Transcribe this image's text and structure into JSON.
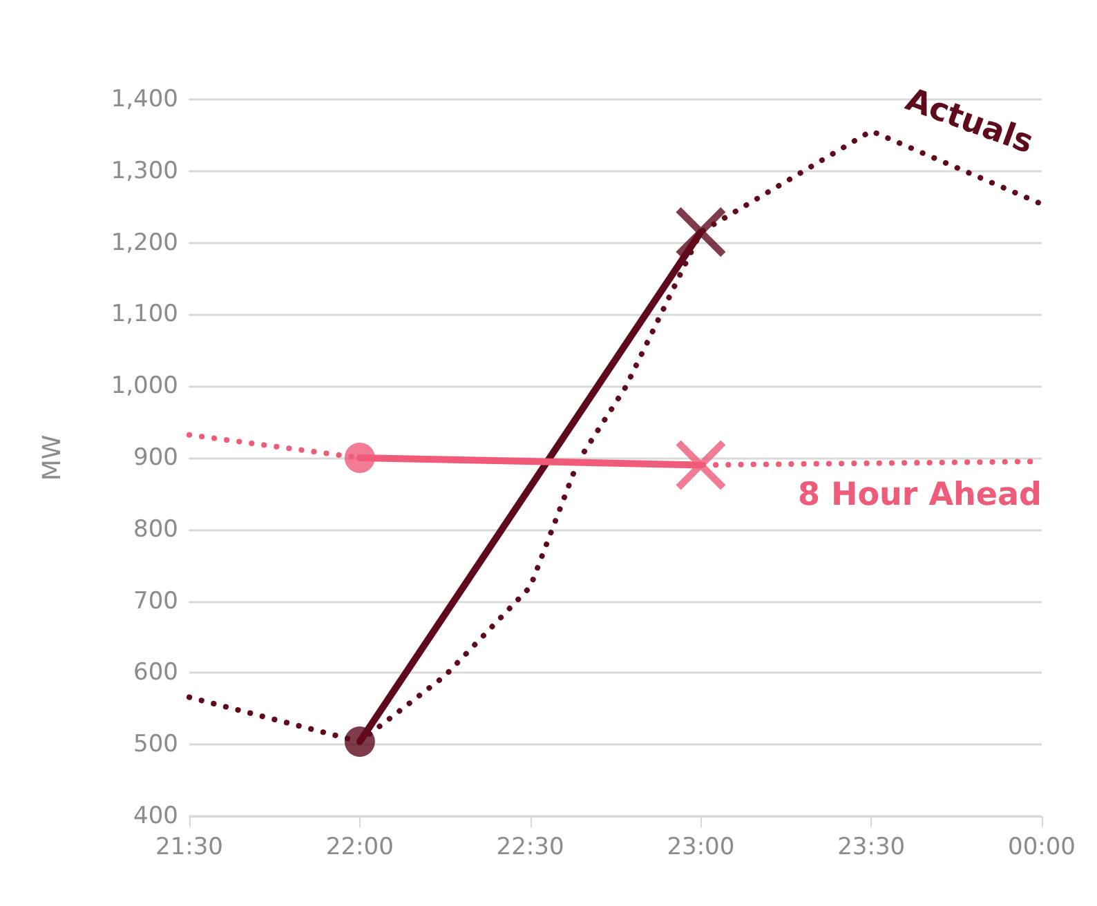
{
  "chart_data": {
    "type": "line",
    "ylabel": "MW",
    "grid": "y",
    "legend": false,
    "xlim": [
      21.5,
      24
    ],
    "xticks": [
      {
        "value": 21.5,
        "label": "21:30"
      },
      {
        "value": 22,
        "label": "22:00"
      },
      {
        "value": 22.5,
        "label": "22:30"
      },
      {
        "value": 23,
        "label": "23:00"
      },
      {
        "value": 23.5,
        "label": "23:30"
      },
      {
        "value": 24,
        "label": "00:00"
      }
    ],
    "ylim": [
      400,
      1400
    ],
    "yticks": [
      {
        "value": 400,
        "label": "400"
      },
      {
        "value": 500,
        "label": "500"
      },
      {
        "value": 600,
        "label": "600"
      },
      {
        "value": 700,
        "label": "700"
      },
      {
        "value": 800,
        "label": "800"
      },
      {
        "value": 900,
        "label": "900"
      },
      {
        "value": 1000,
        "label": "1,000"
      },
      {
        "value": 1100,
        "label": "1,100"
      },
      {
        "value": 1200,
        "label": "1,200"
      },
      {
        "value": 1300,
        "label": "1,300"
      },
      {
        "value": 1400,
        "label": "1,400"
      }
    ],
    "series": [
      {
        "name": "Actuals",
        "color": "#5e0a1c",
        "line_style": "dotted",
        "marker": "none",
        "x": [
          21.5,
          22,
          22.25,
          22.5,
          22.64,
          22.78,
          23,
          23.5,
          24
        ],
        "values": [
          566,
          504,
          596,
          720,
          895,
          999,
          1215,
          1356,
          1254
        ]
      },
      {
        "name": "8 Hour Ahead",
        "color": "#ef5b78",
        "line_style": "dotted",
        "marker": "none",
        "x": [
          21.5,
          22,
          23,
          24
        ],
        "values": [
          932,
          900,
          890,
          895
        ]
      },
      {
        "color": "#5e0a1c",
        "line_style": "solid",
        "marker": "none",
        "x": [
          22,
          23
        ],
        "values": [
          504,
          1215
        ]
      },
      {
        "type": "scatter",
        "color": "#5e0a1c",
        "marker": "circle",
        "x": [
          22
        ],
        "values": [
          504
        ]
      },
      {
        "type": "scatter",
        "color": "#5e0a1c",
        "marker": "cross",
        "x": [
          23
        ],
        "values": [
          1215
        ]
      },
      {
        "color": "#ef5b78",
        "line_style": "solid",
        "marker": "none",
        "x": [
          22,
          23
        ],
        "values": [
          900,
          890
        ]
      },
      {
        "type": "scatter",
        "color": "#ef5b78",
        "marker": "circle",
        "x": [
          22
        ],
        "values": [
          900
        ]
      },
      {
        "type": "scatter",
        "color": "#ef5b78",
        "marker": "cross",
        "x": [
          23
        ],
        "values": [
          890
        ]
      }
    ]
  }
}
